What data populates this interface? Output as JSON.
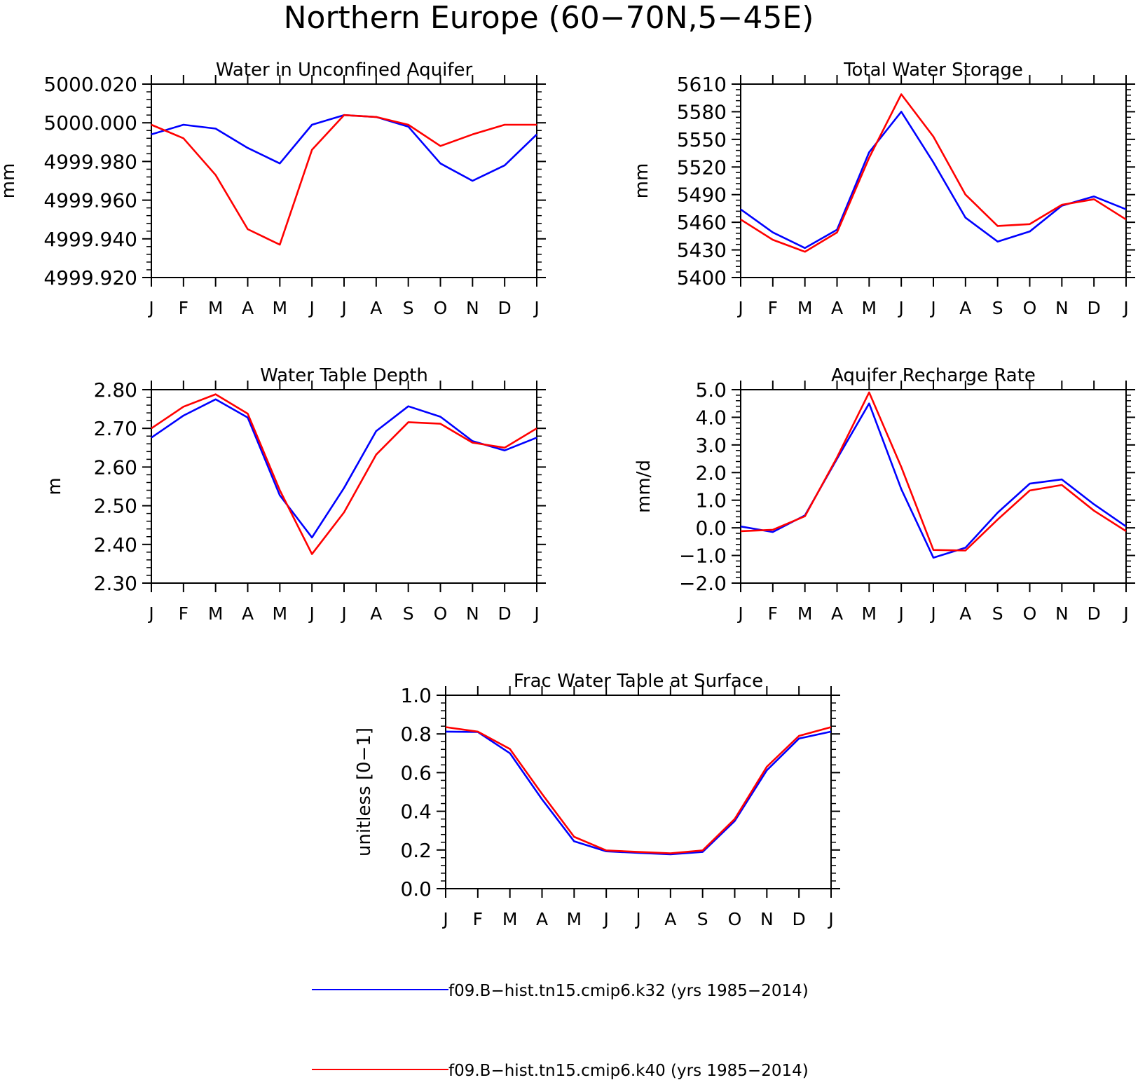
{
  "figure": {
    "title": "Northern Europe (60−70N,5−45E)"
  },
  "colors": {
    "k32": "#0000ff",
    "k40": "#ff0000",
    "axis": "#000000"
  },
  "legend": [
    {
      "label": "f09.B−hist.tn15.cmip6.k32 (yrs 1985−2014)",
      "color": "#0000ff"
    },
    {
      "label": "f09.B−hist.tn15.cmip6.k40 (yrs 1985−2014)",
      "color": "#ff0000"
    }
  ],
  "chart_data": [
    {
      "type": "line",
      "title": "Water in Unconfined Aquifer",
      "ylabel": "mm",
      "categories": [
        "J",
        "F",
        "M",
        "A",
        "M",
        "J",
        "J",
        "A",
        "S",
        "O",
        "N",
        "D",
        "J"
      ],
      "ylim": [
        4999.92,
        5000.02
      ],
      "yticks": [
        4999.92,
        4999.94,
        4999.96,
        4999.98,
        5000.0,
        5000.02
      ],
      "ytick_labels": [
        "4999.920",
        "4999.940",
        "4999.960",
        "4999.980",
        "5000.000",
        "5000.020"
      ],
      "grid": false,
      "series": [
        {
          "name": "f09.B−hist.tn15.cmip6.k32 (yrs 1985−2014)",
          "color": "#0000ff",
          "values": [
            4999.994,
            4999.999,
            4999.997,
            4999.987,
            4999.979,
            4999.999,
            5000.004,
            5000.003,
            4999.998,
            4999.979,
            4999.97,
            4999.978,
            4999.994
          ]
        },
        {
          "name": "f09.B−hist.tn15.cmip6.k40 (yrs 1985−2014)",
          "color": "#ff0000",
          "values": [
            4999.999,
            4999.992,
            4999.973,
            4999.945,
            4999.937,
            4999.986,
            5000.004,
            5000.003,
            4999.999,
            4999.988,
            4999.994,
            4999.999,
            4999.999
          ]
        }
      ]
    },
    {
      "type": "line",
      "title": "Total Water Storage",
      "ylabel": "mm",
      "categories": [
        "J",
        "F",
        "M",
        "A",
        "M",
        "J",
        "J",
        "A",
        "S",
        "O",
        "N",
        "D",
        "J"
      ],
      "ylim": [
        5400,
        5610
      ],
      "yticks": [
        5400,
        5430,
        5460,
        5490,
        5520,
        5550,
        5580,
        5610
      ],
      "ytick_labels": [
        "5400",
        "5430",
        "5460",
        "5490",
        "5520",
        "5550",
        "5580",
        "5610"
      ],
      "grid": false,
      "series": [
        {
          "name": "f09.B−hist.tn15.cmip6.k32 (yrs 1985−2014)",
          "color": "#0000ff",
          "values": [
            5474,
            5449,
            5432,
            5452,
            5536,
            5580,
            5525,
            5465,
            5439,
            5450,
            5478,
            5488,
            5474
          ]
        },
        {
          "name": "f09.B−hist.tn15.cmip6.k40 (yrs 1985−2014)",
          "color": "#ff0000",
          "values": [
            5463,
            5441,
            5428,
            5449,
            5530,
            5599,
            5553,
            5490,
            5456,
            5458,
            5479,
            5485,
            5463
          ]
        }
      ]
    },
    {
      "type": "line",
      "title": "Water Table Depth",
      "ylabel": "m",
      "categories": [
        "J",
        "F",
        "M",
        "A",
        "M",
        "J",
        "J",
        "A",
        "S",
        "O",
        "N",
        "D",
        "J"
      ],
      "ylim": [
        2.3,
        2.8
      ],
      "yticks": [
        2.3,
        2.4,
        2.5,
        2.6,
        2.7,
        2.8
      ],
      "ytick_labels": [
        "2.30",
        "2.40",
        "2.50",
        "2.60",
        "2.70",
        "2.80"
      ],
      "grid": false,
      "series": [
        {
          "name": "f09.B−hist.tn15.cmip6.k32 (yrs 1985−2014)",
          "color": "#0000ff",
          "values": [
            2.676,
            2.733,
            2.775,
            2.728,
            2.527,
            2.418,
            2.546,
            2.693,
            2.757,
            2.73,
            2.667,
            2.643,
            2.676
          ]
        },
        {
          "name": "f09.B−hist.tn15.cmip6.k40 (yrs 1985−2014)",
          "color": "#ff0000",
          "values": [
            2.7,
            2.756,
            2.788,
            2.738,
            2.54,
            2.375,
            2.483,
            2.632,
            2.716,
            2.712,
            2.663,
            2.65,
            2.7
          ]
        }
      ]
    },
    {
      "type": "line",
      "title": "Aquifer Recharge Rate",
      "ylabel": "mm/d",
      "categories": [
        "J",
        "F",
        "M",
        "A",
        "M",
        "J",
        "J",
        "A",
        "S",
        "O",
        "N",
        "D",
        "J"
      ],
      "ylim": [
        -2.0,
        5.0
      ],
      "yticks": [
        -2,
        -1,
        0,
        1,
        2,
        3,
        4,
        5
      ],
      "ytick_labels": [
        "−2.0",
        "−1.0",
        "0.0",
        "1.0",
        "2.0",
        "3.0",
        "4.0",
        "5.0"
      ],
      "grid": false,
      "series": [
        {
          "name": "f09.B−hist.tn15.cmip6.k32 (yrs 1985−2014)",
          "color": "#0000ff",
          "values": [
            0.05,
            -0.15,
            0.45,
            2.5,
            4.5,
            1.4,
            -1.08,
            -0.72,
            0.55,
            1.6,
            1.75,
            0.85,
            0.05
          ]
        },
        {
          "name": "f09.B−hist.tn15.cmip6.k40 (yrs 1985−2014)",
          "color": "#ff0000",
          "values": [
            -0.12,
            -0.07,
            0.42,
            2.55,
            4.9,
            2.2,
            -0.8,
            -0.82,
            0.3,
            1.35,
            1.55,
            0.62,
            -0.12
          ]
        }
      ]
    },
    {
      "type": "line",
      "title": "Frac Water Table at Surface",
      "ylabel": "unitless [0−1]",
      "categories": [
        "J",
        "F",
        "M",
        "A",
        "M",
        "J",
        "J",
        "A",
        "S",
        "O",
        "N",
        "D",
        "J"
      ],
      "ylim": [
        0.0,
        1.0
      ],
      "yticks": [
        0.0,
        0.2,
        0.4,
        0.6,
        0.8,
        1.0
      ],
      "ytick_labels": [
        "0.0",
        "0.2",
        "0.4",
        "0.6",
        "0.8",
        "1.0"
      ],
      "grid": false,
      "series": [
        {
          "name": "f09.B−hist.tn15.cmip6.k32 (yrs 1985−2014)",
          "color": "#0000ff",
          "values": [
            0.812,
            0.81,
            0.7,
            0.462,
            0.245,
            0.193,
            0.185,
            0.178,
            0.19,
            0.35,
            0.612,
            0.776,
            0.812
          ]
        },
        {
          "name": "f09.B−hist.tn15.cmip6.k40 (yrs 1985−2014)",
          "color": "#ff0000",
          "values": [
            0.835,
            0.812,
            0.722,
            0.49,
            0.268,
            0.198,
            0.19,
            0.183,
            0.198,
            0.36,
            0.63,
            0.79,
            0.835
          ]
        }
      ]
    }
  ]
}
